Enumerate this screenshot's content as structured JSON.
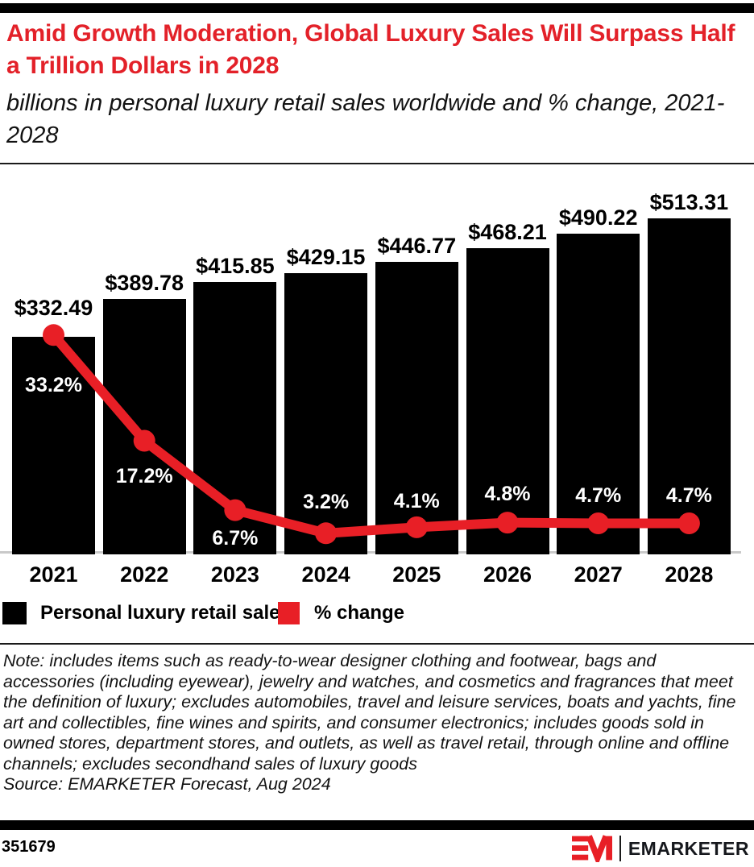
{
  "header": {
    "title": "Amid Growth Moderation, Global Luxury Sales Will Surpass Half a Trillion Dollars in 2028",
    "subtitle": "billions in personal luxury retail sales worldwide and % change, 2021-2028"
  },
  "chart_data": {
    "type": "bar",
    "subtype": "bar-line-combo",
    "title": "Amid Growth Moderation, Global Luxury Sales Will Surpass Half a Trillion Dollars in 2028",
    "subtitle": "billions in personal luxury retail sales worldwide and % change, 2021-2028",
    "categories": [
      "2021",
      "2022",
      "2023",
      "2024",
      "2025",
      "2026",
      "2027",
      "2028"
    ],
    "series": [
      {
        "name": "Personal luxury retail sales",
        "type": "bar",
        "unit": "USD billions",
        "color": "#000000",
        "values": [
          332.49,
          389.78,
          415.85,
          429.15,
          446.77,
          468.21,
          490.22,
          513.31
        ],
        "labels": [
          "$332.49",
          "$389.78",
          "$415.85",
          "$429.15",
          "$446.77",
          "$468.21",
          "$490.22",
          "$513.31"
        ]
      },
      {
        "name": "% change",
        "type": "line",
        "unit": "%",
        "color": "#e81f26",
        "values": [
          33.2,
          17.2,
          6.7,
          3.2,
          4.1,
          4.8,
          4.7,
          4.7
        ],
        "labels": [
          "33.2%",
          "17.2%",
          "6.7%",
          "3.2%",
          "4.1%",
          "4.8%",
          "4.7%",
          "4.7%"
        ]
      }
    ],
    "xlabel": "",
    "ylabel": "",
    "grid": false,
    "legend_position": "bottom-left",
    "layout": {
      "pct_label_offsets": [
        62,
        44,
        35,
        -39,
        -32,
        -36,
        -35,
        -35
      ]
    }
  },
  "legend": {
    "items": [
      {
        "label": "Personal luxury retail sales",
        "color": "#000000"
      },
      {
        "label": "% change",
        "color": "#e81f26"
      }
    ]
  },
  "note": "Note: includes items such as ready-to-wear designer clothing and footwear, bags and accessories (including eyewear), jewelry and watches, and cosmetics and fragrances that meet the definition of luxury; excludes automobiles, travel and leisure services, boats and yachts, fine art and collectibles, fine wines and spirits, and consumer electronics; includes goods sold in owned stores, department stores, and outlets, as well as travel retail, through online and offline channels; excludes secondhand sales of luxury goods",
  "source": "Source: EMARKETER Forecast, Aug 2024",
  "footer": {
    "chart_id": "351679",
    "brand": "EMARKETER"
  },
  "colors": {
    "accent_red": "#e81f26",
    "title_red": "#e32129",
    "bar_black": "#000000",
    "baseline_gray": "#c9c9c9"
  }
}
